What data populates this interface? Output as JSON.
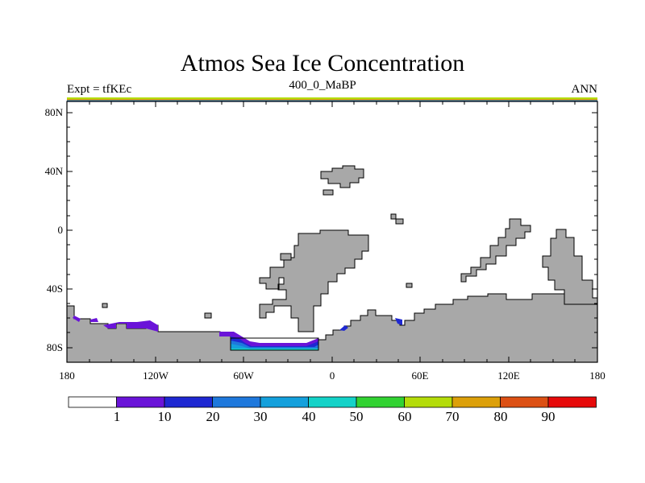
{
  "title": "Atmos Sea Ice Concentration",
  "subtitle_left": "Expt = tfKEc",
  "subtitle_center": "400_0_MaBP",
  "subtitle_right": "ANN",
  "map": {
    "projection": "cylindrical equidistant",
    "lon_range": [
      -180,
      180
    ],
    "lat_range": [
      -90,
      90
    ],
    "y_ticks": [
      "80N",
      "40N",
      "0",
      "40S",
      "80S"
    ],
    "x_ticks": [
      "180",
      "120W",
      "60W",
      "0",
      "60E",
      "120E",
      "180"
    ],
    "land_color": "#a8a8a8",
    "ocean_color": "#ffffff"
  },
  "colorbar": {
    "labels": [
      "1",
      "10",
      "20",
      "30",
      "40",
      "50",
      "60",
      "70",
      "80",
      "90"
    ],
    "colors": [
      "#ffffff",
      "#6a14d8",
      "#1e28d2",
      "#1e78dc",
      "#14a0dc",
      "#14d2c8",
      "#32d232",
      "#b4dc0a",
      "#dca00a",
      "#dc5014",
      "#e60a0a"
    ]
  }
}
